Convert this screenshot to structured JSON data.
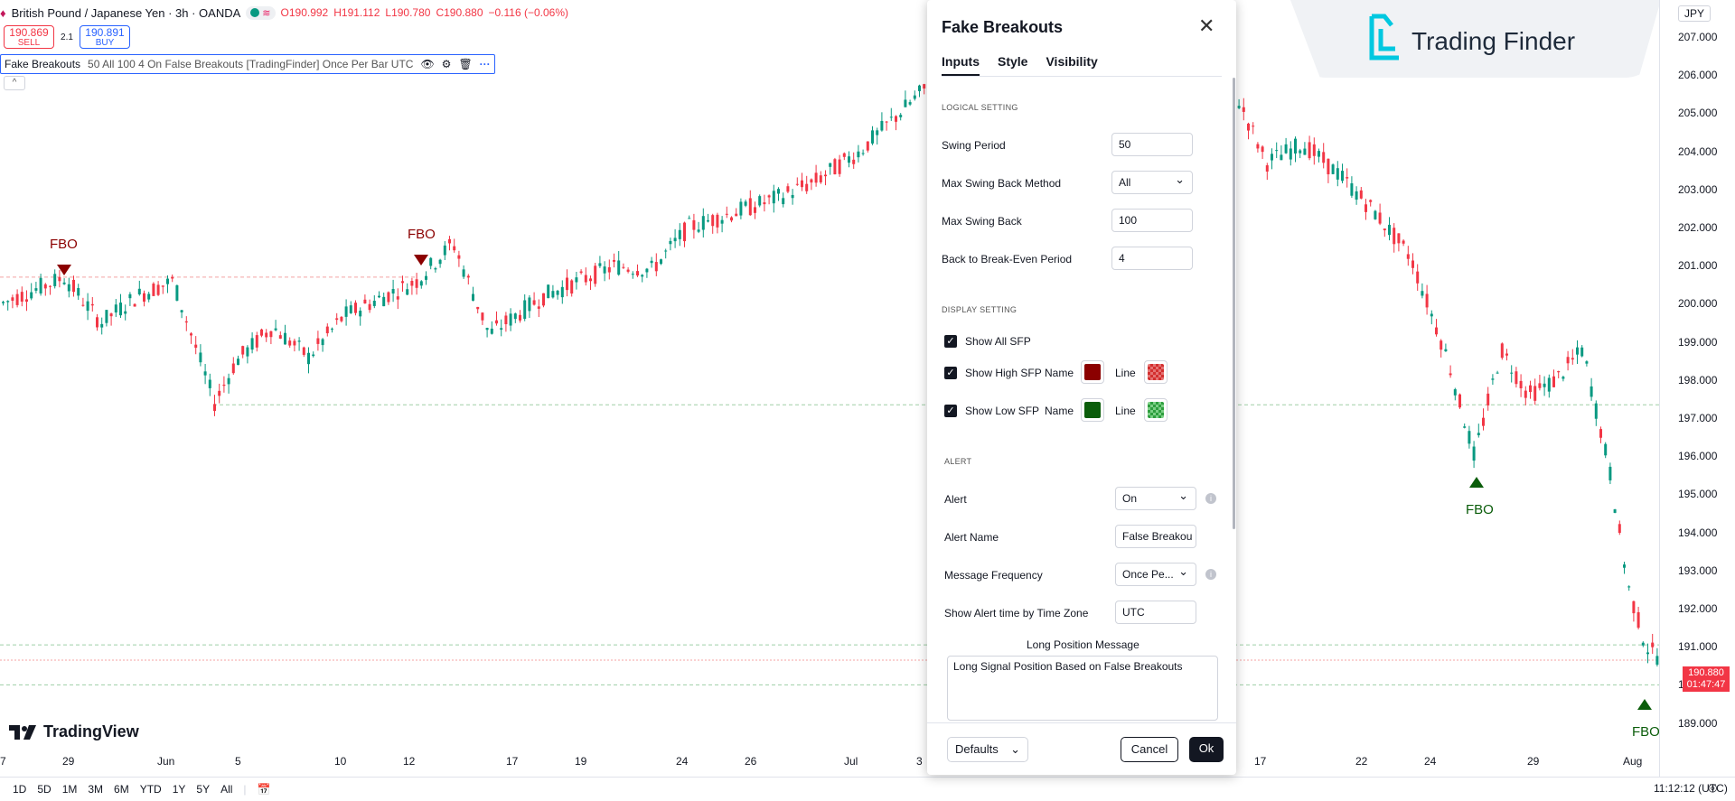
{
  "header": {
    "symbol": "British Pound / Japanese Yen · 3h · OANDA",
    "ohlc": {
      "open": "O190.992",
      "high": "H191.112",
      "low": "L190.780",
      "close": "C190.880",
      "change": "−0.116 (−0.06%)"
    }
  },
  "trade": {
    "sell_price": "190.869",
    "sell_label": "SELL",
    "spread": "2.1",
    "buy_price": "190.891",
    "buy_label": "BUY"
  },
  "indicator": {
    "name": "Fake Breakouts",
    "params": "50 All 100 4 On False Breakouts [TradingFinder] Once Per Bar UTC"
  },
  "chart": {
    "fbo_label": "FBO",
    "price_scale": [
      "207.000",
      "206.000",
      "205.000",
      "204.000",
      "203.000",
      "202.000",
      "201.000",
      "200.000",
      "199.000",
      "198.000",
      "197.000",
      "196.000",
      "195.000",
      "194.000",
      "193.000",
      "192.000",
      "191.000",
      "190.000",
      "189.000"
    ],
    "currency": "JPY",
    "last_price": "190.880",
    "countdown": "01:47:47",
    "time_axis": [
      "7",
      "29",
      "Jun",
      "5",
      "10",
      "12",
      "17",
      "19",
      "24",
      "26",
      "Jul",
      "3",
      "17",
      "22",
      "24",
      "29",
      "Aug"
    ]
  },
  "logo": {
    "tradingview": "TradingView",
    "trading_finder": "Trading Finder"
  },
  "bottom": {
    "ranges": [
      "1D",
      "5D",
      "1M",
      "3M",
      "6M",
      "YTD",
      "1Y",
      "5Y",
      "All"
    ],
    "clock": "11:12:12 (UTC)"
  },
  "dialog": {
    "title": "Fake Breakouts",
    "tabs": [
      "Inputs",
      "Style",
      "Visibility"
    ],
    "logical_section": "LOGICAL SETTING",
    "swing_period": {
      "label": "Swing Period",
      "value": "50"
    },
    "max_swing_method": {
      "label": "Max Swing Back Method",
      "value": "All"
    },
    "max_swing_back": {
      "label": "Max Swing Back",
      "value": "100"
    },
    "break_even": {
      "label": "Back to Break-Even Period",
      "value": "4"
    },
    "display_section": "DISPLAY SETTING",
    "show_all": "Show All SFP",
    "show_high": "Show High SFP",
    "show_low": "Show Low SFP",
    "name_label": "Name",
    "line_label": "Line",
    "alert_section": "ALERT",
    "alert": {
      "label": "Alert",
      "value": "On"
    },
    "alert_name": {
      "label": "Alert Name",
      "value": "False Breakou"
    },
    "message_frequency": {
      "label": "Message Frequency",
      "value": "Once Pe..."
    },
    "alert_time_zone": {
      "label": "Show Alert time by Time Zone",
      "value": "UTC"
    },
    "long_message": {
      "label": "Long Position Message",
      "value": "Long Signal Position Based on False Breakouts"
    },
    "defaults": "Defaults",
    "cancel": "Cancel",
    "ok": "Ok"
  },
  "colors": {
    "up": "#089981",
    "down": "#f23645",
    "high_sfp": "#8b0000",
    "low_sfp": "#0b5d0b",
    "accent": "#2962ff"
  }
}
